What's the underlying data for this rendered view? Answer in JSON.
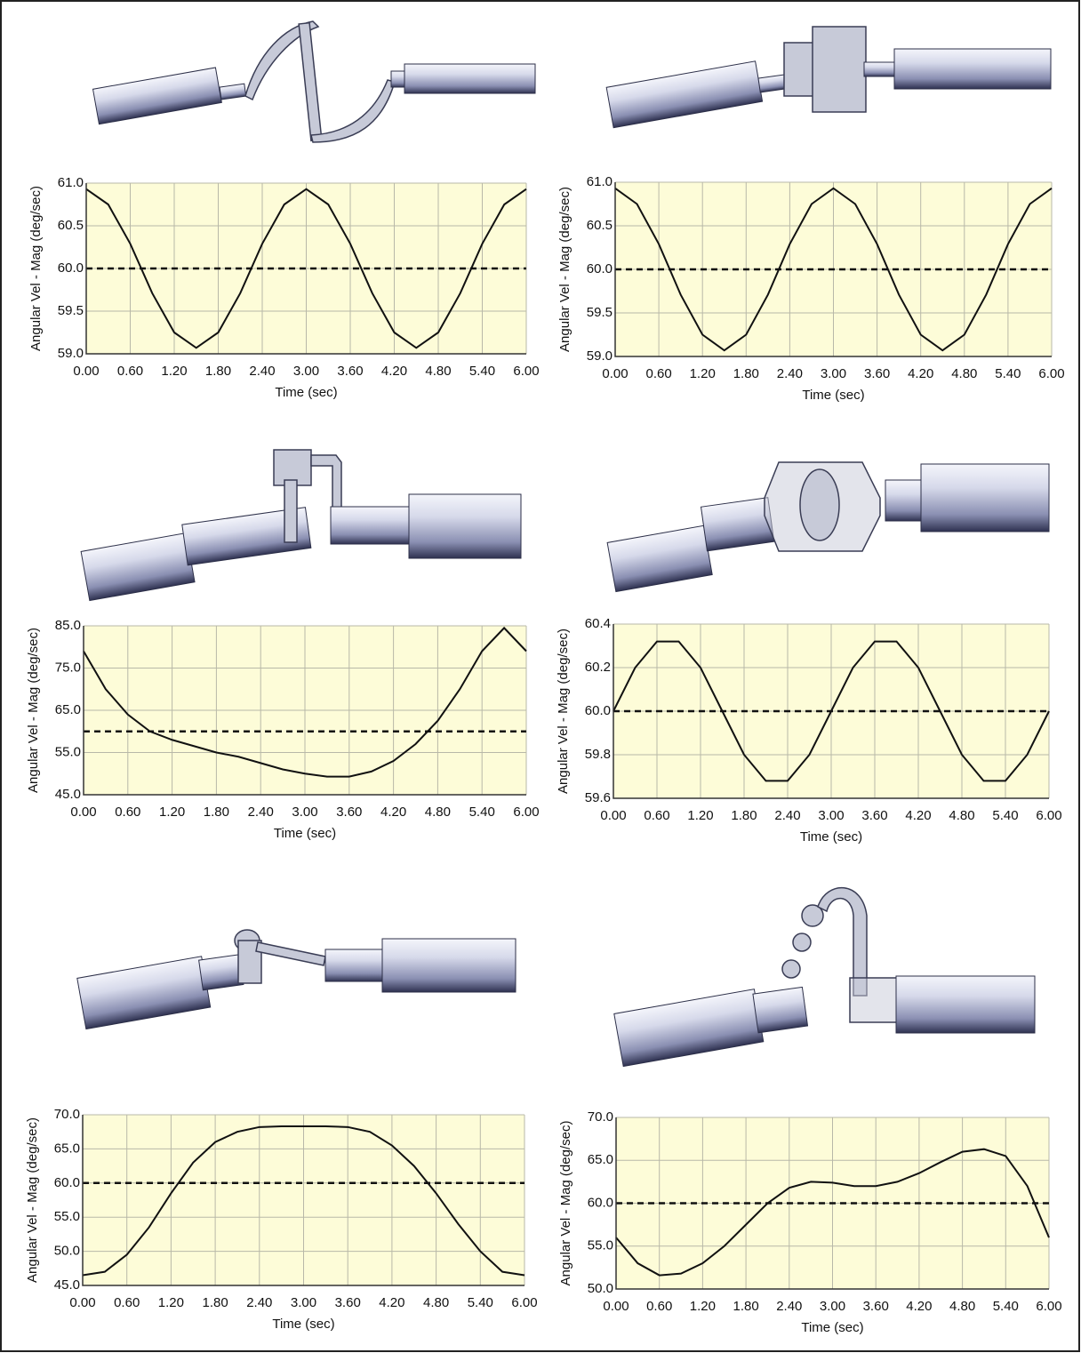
{
  "chart_data": [
    {
      "type": "line",
      "x_label": "Time (sec)",
      "y_label": "Angular Vel - Mag (deg/sec)",
      "color": "#111111",
      "hline": 60,
      "grid": true,
      "x": [
        0,
        0.3,
        0.6,
        0.9,
        1.2,
        1.5,
        1.8,
        2.1,
        2.4,
        2.7,
        3.0,
        3.3,
        3.6,
        3.9,
        4.2,
        4.5,
        4.8,
        5.1,
        5.4,
        5.7,
        6.0
      ],
      "values": [
        60.93,
        60.75,
        60.29,
        59.71,
        59.25,
        59.07,
        59.25,
        59.71,
        60.29,
        60.75,
        60.93,
        60.75,
        60.29,
        59.71,
        59.25,
        59.07,
        59.25,
        59.71,
        60.29,
        60.75,
        60.93
      ],
      "xlim": [
        0,
        6
      ],
      "ylim": [
        59,
        61
      ],
      "xticks": [
        {
          "value": 0,
          "label": "0.00"
        },
        {
          "value": 0.6,
          "label": "0.60"
        },
        {
          "value": 1.2,
          "label": "1.20"
        },
        {
          "value": 1.8,
          "label": "1.80"
        },
        {
          "value": 2.4,
          "label": "2.40"
        },
        {
          "value": 3.0,
          "label": "3.00"
        },
        {
          "value": 3.6,
          "label": "3.60"
        },
        {
          "value": 4.2,
          "label": "4.20"
        },
        {
          "value": 4.8,
          "label": "4.80"
        },
        {
          "value": 5.4,
          "label": "5.40"
        },
        {
          "value": 6,
          "label": "6.00"
        }
      ],
      "yticks": [
        {
          "value": 59,
          "label": "59.0"
        },
        {
          "value": 59.5,
          "label": "59.5"
        },
        {
          "value": 60,
          "label": "60.0"
        },
        {
          "value": 60.5,
          "label": "60.5"
        },
        {
          "value": 61,
          "label": "61.0"
        }
      ]
    },
    {
      "type": "line",
      "x_label": "Time (sec)",
      "y_label": "Angular Vel - Mag (deg/sec)",
      "color": "#111111",
      "hline": 60,
      "grid": true,
      "x": [
        0,
        0.3,
        0.6,
        0.9,
        1.2,
        1.5,
        1.8,
        2.1,
        2.4,
        2.7,
        3.0,
        3.3,
        3.6,
        3.9,
        4.2,
        4.5,
        4.8,
        5.1,
        5.4,
        5.7,
        6.0
      ],
      "values": [
        60.93,
        60.75,
        60.29,
        59.71,
        59.25,
        59.07,
        59.25,
        59.71,
        60.29,
        60.75,
        60.93,
        60.75,
        60.29,
        59.71,
        59.25,
        59.07,
        59.25,
        59.71,
        60.29,
        60.75,
        60.93
      ],
      "xlim": [
        0,
        6
      ],
      "ylim": [
        59,
        61
      ],
      "xticks": [
        {
          "value": 0,
          "label": "0.00"
        },
        {
          "value": 0.6,
          "label": "0.60"
        },
        {
          "value": 1.2,
          "label": "1.20"
        },
        {
          "value": 1.8,
          "label": "1.80"
        },
        {
          "value": 2.4,
          "label": "2.40"
        },
        {
          "value": 3.0,
          "label": "3.00"
        },
        {
          "value": 3.6,
          "label": "3.60"
        },
        {
          "value": 4.2,
          "label": "4.20"
        },
        {
          "value": 4.8,
          "label": "4.80"
        },
        {
          "value": 5.4,
          "label": "5.40"
        },
        {
          "value": 6,
          "label": "6.00"
        }
      ],
      "yticks": [
        {
          "value": 59,
          "label": "59.0"
        },
        {
          "value": 59.5,
          "label": "59.5"
        },
        {
          "value": 60,
          "label": "60.0"
        },
        {
          "value": 60.5,
          "label": "60.5"
        },
        {
          "value": 61,
          "label": "61.0"
        }
      ]
    },
    {
      "type": "line",
      "x_label": "Time (sec)",
      "y_label": "Angular Vel - Mag (deg/sec)",
      "color": "#111111",
      "hline": 60,
      "grid": true,
      "x": [
        0,
        0.3,
        0.6,
        0.9,
        1.2,
        1.5,
        1.8,
        2.1,
        2.4,
        2.7,
        3.0,
        3.3,
        3.6,
        3.9,
        4.2,
        4.5,
        4.8,
        5.1,
        5.4,
        5.7,
        6.0
      ],
      "values": [
        79,
        70,
        64,
        60,
        58,
        56.5,
        55,
        54,
        52.5,
        51,
        50,
        49.3,
        49.3,
        50.5,
        53,
        57,
        62.5,
        70,
        79,
        84.5,
        79
      ],
      "xlim": [
        0,
        6
      ],
      "ylim": [
        45,
        85
      ],
      "xticks": [
        {
          "value": 0,
          "label": "0.00"
        },
        {
          "value": 0.6,
          "label": "0.60"
        },
        {
          "value": 1.2,
          "label": "1.20"
        },
        {
          "value": 1.8,
          "label": "1.80"
        },
        {
          "value": 2.4,
          "label": "2.40"
        },
        {
          "value": 3.0,
          "label": "3.00"
        },
        {
          "value": 3.6,
          "label": "3.60"
        },
        {
          "value": 4.2,
          "label": "4.20"
        },
        {
          "value": 4.8,
          "label": "4.80"
        },
        {
          "value": 5.4,
          "label": "5.40"
        },
        {
          "value": 6,
          "label": "6.00"
        }
      ],
      "yticks": [
        {
          "value": 45,
          "label": "45.0"
        },
        {
          "value": 55,
          "label": "55.0"
        },
        {
          "value": 65,
          "label": "65.0"
        },
        {
          "value": 75,
          "label": "75.0"
        },
        {
          "value": 85,
          "label": "85.0"
        }
      ]
    },
    {
      "type": "line",
      "x_label": "Time (sec)",
      "y_label": "Angular Vel - Mag (deg/sec)",
      "color": "#111111",
      "hline": 60,
      "grid": true,
      "x": [
        0,
        0.3,
        0.6,
        0.9,
        1.2,
        1.5,
        1.8,
        2.1,
        2.4,
        2.7,
        3.0,
        3.3,
        3.6,
        3.9,
        4.2,
        4.5,
        4.8,
        5.1,
        5.4,
        5.7,
        6.0
      ],
      "values": [
        60.0,
        60.2,
        60.32,
        60.32,
        60.2,
        60.0,
        59.8,
        59.68,
        59.68,
        59.8,
        60.0,
        60.2,
        60.32,
        60.32,
        60.2,
        60.0,
        59.8,
        59.68,
        59.68,
        59.8,
        60.0
      ],
      "xlim": [
        0,
        6
      ],
      "ylim": [
        59.6,
        60.4
      ],
      "xticks": [
        {
          "value": 0,
          "label": "0.00"
        },
        {
          "value": 0.6,
          "label": "0.60"
        },
        {
          "value": 1.2,
          "label": "1.20"
        },
        {
          "value": 1.8,
          "label": "1.80"
        },
        {
          "value": 2.4,
          "label": "2.40"
        },
        {
          "value": 3.0,
          "label": "3.00"
        },
        {
          "value": 3.6,
          "label": "3.60"
        },
        {
          "value": 4.2,
          "label": "4.20"
        },
        {
          "value": 4.8,
          "label": "4.80"
        },
        {
          "value": 5.4,
          "label": "5.40"
        },
        {
          "value": 6,
          "label": "6.00"
        }
      ],
      "yticks": [
        {
          "value": 59.6,
          "label": "59.6"
        },
        {
          "value": 59.8,
          "label": "59.8"
        },
        {
          "value": 60,
          "label": "60.0"
        },
        {
          "value": 60.2,
          "label": "60.2"
        },
        {
          "value": 60.4,
          "label": "60.4"
        }
      ]
    },
    {
      "type": "line",
      "x_label": "Time (sec)",
      "y_label": "Angular Vel - Mag (deg/sec)",
      "color": "#111111",
      "hline": 60,
      "grid": true,
      "x": [
        0,
        0.3,
        0.6,
        0.9,
        1.2,
        1.5,
        1.8,
        2.1,
        2.4,
        2.7,
        3.0,
        3.3,
        3.6,
        3.9,
        4.2,
        4.5,
        4.8,
        5.1,
        5.4,
        5.7,
        6.0
      ],
      "values": [
        46.5,
        47,
        49.5,
        53.5,
        58.5,
        63,
        66,
        67.5,
        68.2,
        68.3,
        68.3,
        68.3,
        68.2,
        67.5,
        65.5,
        62.5,
        58.5,
        54,
        50,
        47,
        46.5
      ],
      "xlim": [
        0,
        6
      ],
      "ylim": [
        45,
        70
      ],
      "xticks": [
        {
          "value": 0,
          "label": "0.00"
        },
        {
          "value": 0.6,
          "label": "0.60"
        },
        {
          "value": 1.2,
          "label": "1.20"
        },
        {
          "value": 1.8,
          "label": "1.80"
        },
        {
          "value": 2.4,
          "label": "2.40"
        },
        {
          "value": 3.0,
          "label": "3.00"
        },
        {
          "value": 3.6,
          "label": "3.60"
        },
        {
          "value": 4.2,
          "label": "4.20"
        },
        {
          "value": 4.8,
          "label": "4.80"
        },
        {
          "value": 5.4,
          "label": "5.40"
        },
        {
          "value": 6,
          "label": "6.00"
        }
      ],
      "yticks": [
        {
          "value": 45,
          "label": "45.0"
        },
        {
          "value": 50,
          "label": "50.0"
        },
        {
          "value": 55,
          "label": "55.0"
        },
        {
          "value": 60,
          "label": "60.0"
        },
        {
          "value": 65,
          "label": "65.0"
        },
        {
          "value": 70,
          "label": "70.0"
        }
      ]
    },
    {
      "type": "line",
      "x_label": "Time (sec)",
      "y_label": "Angular Vel - Mag (deg/sec)",
      "color": "#111111",
      "hline": 60,
      "grid": true,
      "x": [
        0,
        0.3,
        0.6,
        0.9,
        1.2,
        1.5,
        1.8,
        2.1,
        2.4,
        2.7,
        3.0,
        3.3,
        3.6,
        3.9,
        4.2,
        4.5,
        4.8,
        5.1,
        5.4,
        5.7,
        6.0
      ],
      "values": [
        56,
        53,
        51.6,
        51.8,
        53,
        55,
        57.5,
        60,
        61.8,
        62.5,
        62.4,
        62,
        62,
        62.5,
        63.5,
        64.8,
        66,
        66.3,
        65.5,
        62,
        56
      ],
      "xlim": [
        0,
        6
      ],
      "ylim": [
        50,
        70
      ],
      "xticks": [
        {
          "value": 0,
          "label": "0.00"
        },
        {
          "value": 0.6,
          "label": "0.60"
        },
        {
          "value": 1.2,
          "label": "1.20"
        },
        {
          "value": 1.8,
          "label": "1.80"
        },
        {
          "value": 2.4,
          "label": "2.40"
        },
        {
          "value": 3.0,
          "label": "3.00"
        },
        {
          "value": 3.6,
          "label": "3.60"
        },
        {
          "value": 4.2,
          "label": "4.20"
        },
        {
          "value": 4.8,
          "label": "4.80"
        },
        {
          "value": 5.4,
          "label": "5.40"
        },
        {
          "value": 6,
          "label": "6.00"
        }
      ],
      "yticks": [
        {
          "value": 50,
          "label": "50.0"
        },
        {
          "value": 55,
          "label": "55.0"
        },
        {
          "value": 60,
          "label": "60.0"
        },
        {
          "value": 65,
          "label": "65.0"
        },
        {
          "value": 70,
          "label": "70.0"
        }
      ]
    }
  ]
}
